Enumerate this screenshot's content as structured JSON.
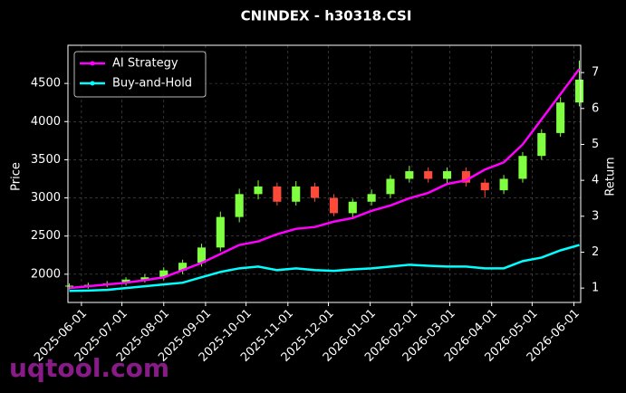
{
  "chart_data": {
    "type": "candlestick",
    "title": "CNINDEX - h30318.CSI",
    "ylabel": "Price",
    "y2label": "Return",
    "watermark": "uqtool.com",
    "x": [
      "2025-05-23",
      "2025-06-06",
      "2025-06-20",
      "2025-07-04",
      "2025-07-18",
      "2025-08-01",
      "2025-08-15",
      "2025-08-29",
      "2025-09-12",
      "2025-09-26",
      "2025-10-10",
      "2025-10-24",
      "2025-11-07",
      "2025-11-21",
      "2025-12-05",
      "2025-12-19",
      "2026-01-02",
      "2026-01-16",
      "2026-01-30",
      "2026-02-13",
      "2026-02-27",
      "2026-03-13",
      "2026-03-27",
      "2026-04-10",
      "2026-04-24",
      "2026-05-08",
      "2026-05-22",
      "2026-06-05"
    ],
    "open": [
      1840,
      1850,
      1860,
      1880,
      1930,
      1960,
      2050,
      2150,
      2350,
      2750,
      3050,
      3150,
      2950,
      3150,
      3000,
      2800,
      2950,
      3050,
      3250,
      3350,
      3250,
      3350,
      3200,
      3100,
      3250,
      3550,
      3850,
      4250
    ],
    "high": [
      1880,
      1890,
      1910,
      1960,
      2000,
      2090,
      2190,
      2400,
      2820,
      3120,
      3230,
      3200,
      3220,
      3200,
      3050,
      2990,
      3110,
      3300,
      3420,
      3400,
      3400,
      3400,
      3250,
      3300,
      3600,
      3900,
      4320,
      4800
    ],
    "low": [
      1800,
      1810,
      1830,
      1850,
      1890,
      1920,
      2000,
      2100,
      2300,
      2680,
      2980,
      2900,
      2900,
      2950,
      2760,
      2750,
      2900,
      3000,
      3200,
      3200,
      3180,
      3150,
      3000,
      3050,
      3200,
      3500,
      3800,
      4200
    ],
    "close": [
      1850,
      1860,
      1880,
      1930,
      1960,
      2050,
      2150,
      2350,
      2750,
      3050,
      3150,
      2950,
      3150,
      3000,
      2800,
      2950,
      3050,
      3250,
      3350,
      3250,
      3350,
      3200,
      3100,
      3250,
      3550,
      3850,
      4250,
      4550
    ],
    "up_color": "#7fff3f",
    "down_color": "#ff4a3a",
    "series": [
      {
        "name": "AI Strategy",
        "color": "#ff00ff",
        "axis": "y2",
        "values": [
          1.0,
          1.05,
          1.1,
          1.15,
          1.22,
          1.3,
          1.5,
          1.7,
          1.95,
          2.2,
          2.3,
          2.5,
          2.65,
          2.7,
          2.85,
          2.95,
          3.15,
          3.3,
          3.5,
          3.65,
          3.9,
          4.0,
          4.3,
          4.5,
          5.0,
          5.7,
          6.4,
          7.1
        ]
      },
      {
        "name": "Buy-and-Hold",
        "color": "#00ffff",
        "axis": "y2",
        "values": [
          0.92,
          0.93,
          0.95,
          1.0,
          1.05,
          1.1,
          1.15,
          1.3,
          1.45,
          1.55,
          1.6,
          1.5,
          1.55,
          1.5,
          1.48,
          1.52,
          1.55,
          1.6,
          1.65,
          1.62,
          1.6,
          1.6,
          1.55,
          1.55,
          1.75,
          1.85,
          2.05,
          2.2
        ]
      }
    ],
    "xlim": [
      "2025-05-22",
      "2026-06-06"
    ],
    "xticks": [
      "2025-06-01",
      "2025-07-01",
      "2025-08-01",
      "2025-09-01",
      "2025-10-01",
      "2025-11-01",
      "2025-12-01",
      "2026-01-01",
      "2026-02-01",
      "2026-03-01",
      "2026-04-01",
      "2026-05-01",
      "2026-06-01"
    ],
    "ylim": [
      1630,
      5000
    ],
    "yticks": [
      2000,
      2500,
      3000,
      3500,
      4000,
      4500
    ],
    "y2lim": [
      0.6,
      7.76
    ],
    "y2ticks": [
      1,
      2,
      3,
      4,
      5,
      6,
      7
    ],
    "grid": true,
    "legend": "upper left"
  }
}
